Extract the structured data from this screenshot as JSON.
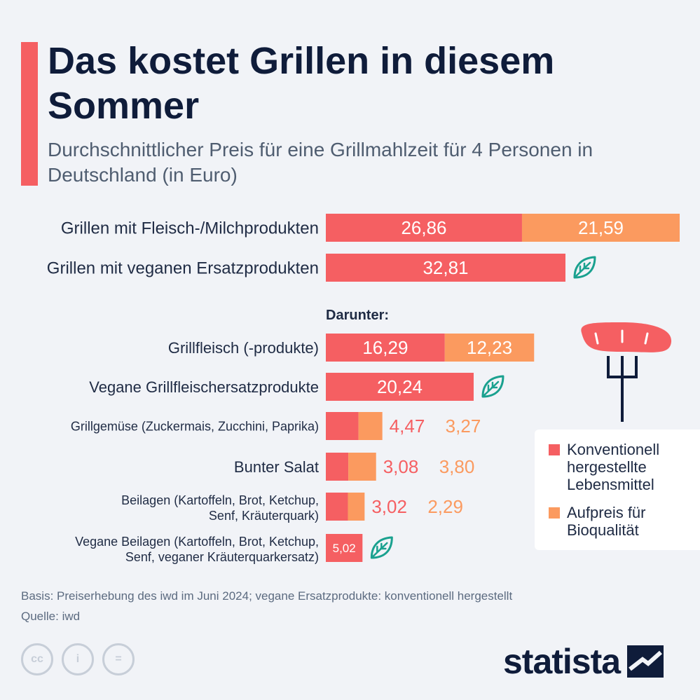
{
  "header": {
    "title": "Das kostet Grillen in diesem Sommer",
    "subtitle": "Durchschnittlicher Preis für eine Grillmahlzeit für 4 Personen in Deutschland (in Euro)"
  },
  "colors": {
    "conventional": "#f55f62",
    "organic_premium": "#fb9a5f",
    "vegan_leaf": "#1aa18f",
    "title": "#0f1c3a"
  },
  "chart_data": {
    "type": "bar",
    "orientation": "horizontal",
    "stacked": true,
    "section_label": "Darunter:",
    "categories": [
      "Grillen mit Fleisch-/Milchprodukten",
      "Grillen mit veganen Ersatzprodukten",
      "Grillfleisch (-produkte)",
      "Vegane Grillfleischersatzprodukte",
      "Grillgemüse (Zuckermais, Zucchini, Paprika)",
      "Bunter Salat",
      "Beilagen (Kartoffeln, Brot, Ketchup, Senf, Kräuterquark)",
      "Vegane Beilagen (Kartoffeln, Brot, Ketchup, Senf, veganer Kräuterquarkersatz)"
    ],
    "category_lines": [
      [
        "Grillen mit Fleisch-/Milchprodukten"
      ],
      [
        "Grillen mit veganen Ersatzprodukten"
      ],
      [
        "Grillfleisch (-produkte)"
      ],
      [
        "Vegane Grillfleischersatzprodukte"
      ],
      [
        "Grillgemüse (Zuckermais, Zucchini, Paprika)"
      ],
      [
        "Bunter Salat"
      ],
      [
        "Beilagen (Kartoffeln, Brot, Ketchup,",
        "Senf, Kräuterquark)"
      ],
      [
        "Vegane Beilagen (Kartoffeln, Brot, Ketchup,",
        "Senf, veganer Kräuterquarkersatz)"
      ]
    ],
    "vegan_marked": [
      false,
      true,
      false,
      true,
      false,
      false,
      false,
      true
    ],
    "series": [
      {
        "name": "Konventionell hergestellte Lebensmittel",
        "values": [
          26.86,
          32.81,
          16.29,
          20.24,
          4.47,
          3.08,
          3.02,
          5.02
        ]
      },
      {
        "name": "Aufpreis für Bioqualität",
        "values": [
          21.59,
          null,
          12.23,
          null,
          3.27,
          3.8,
          2.29,
          null
        ]
      }
    ],
    "value_labels": [
      [
        "26,86",
        "32,81",
        "16,29",
        "20,24",
        "4,47",
        "3,08",
        "3,02",
        "5,02"
      ],
      [
        "21,59",
        "",
        "12,23",
        "",
        "3,27",
        "3,80",
        "2,29",
        ""
      ]
    ],
    "legend": "right",
    "xlim": [
      0,
      48.45
    ]
  },
  "legend": {
    "items": [
      {
        "label": "Konventionell hergestellte Lebensmittel",
        "lines": [
          "Konventionell",
          "hergestellte",
          "Lebensmittel"
        ]
      },
      {
        "label": "Aufpreis für Bioqualität",
        "lines": [
          "Aufpreis für",
          "Bioqualität"
        ]
      }
    ]
  },
  "footer": {
    "basis": "Basis: Preiserhebung des iwd im Juni 2024; vegane Ersatzprodukte: konventionell hergestellt",
    "source": "Quelle: iwd"
  },
  "branding": {
    "logo": "statista",
    "license_icons": [
      "cc-icon",
      "attribution-icon",
      "no-derivatives-icon"
    ],
    "license_glyphs": [
      "cc",
      "i",
      "="
    ]
  }
}
